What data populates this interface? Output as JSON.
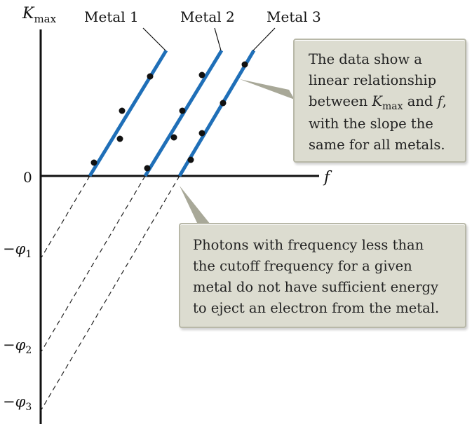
{
  "axes": {
    "y_label_main": "K",
    "y_label_sub": "max",
    "x_label": "f",
    "origin_label": "0",
    "phi_labels": [
      {
        "prefix": "−",
        "symbol": "φ",
        "sub": "1"
      },
      {
        "prefix": "−",
        "symbol": "φ",
        "sub": "2"
      },
      {
        "prefix": "−",
        "symbol": "φ",
        "sub": "3"
      }
    ]
  },
  "metals": [
    "Metal 1",
    "Metal 2",
    "Metal 3"
  ],
  "note_top": {
    "line1": "The data show a",
    "line2": "linear relationship",
    "line3_pre": "between ",
    "line3_sym": "K",
    "line3_sub": "max",
    "line3_mid": " and ",
    "line3_sym2": "f",
    "line3_post": ",",
    "line4": "with the slope the",
    "line5": "same for all metals."
  },
  "note_bottom": {
    "line1": "Photons with frequency less than",
    "line2": "the cutoff frequency for a given",
    "line3": "metal do not have sufficient energy",
    "line4": "to eject an electron from the metal."
  },
  "colors": {
    "line": "#1f6fb8",
    "axis": "#111111",
    "point": "#111111",
    "callout_bg": "#dcdcd0",
    "leader": "#a8a898"
  }
}
